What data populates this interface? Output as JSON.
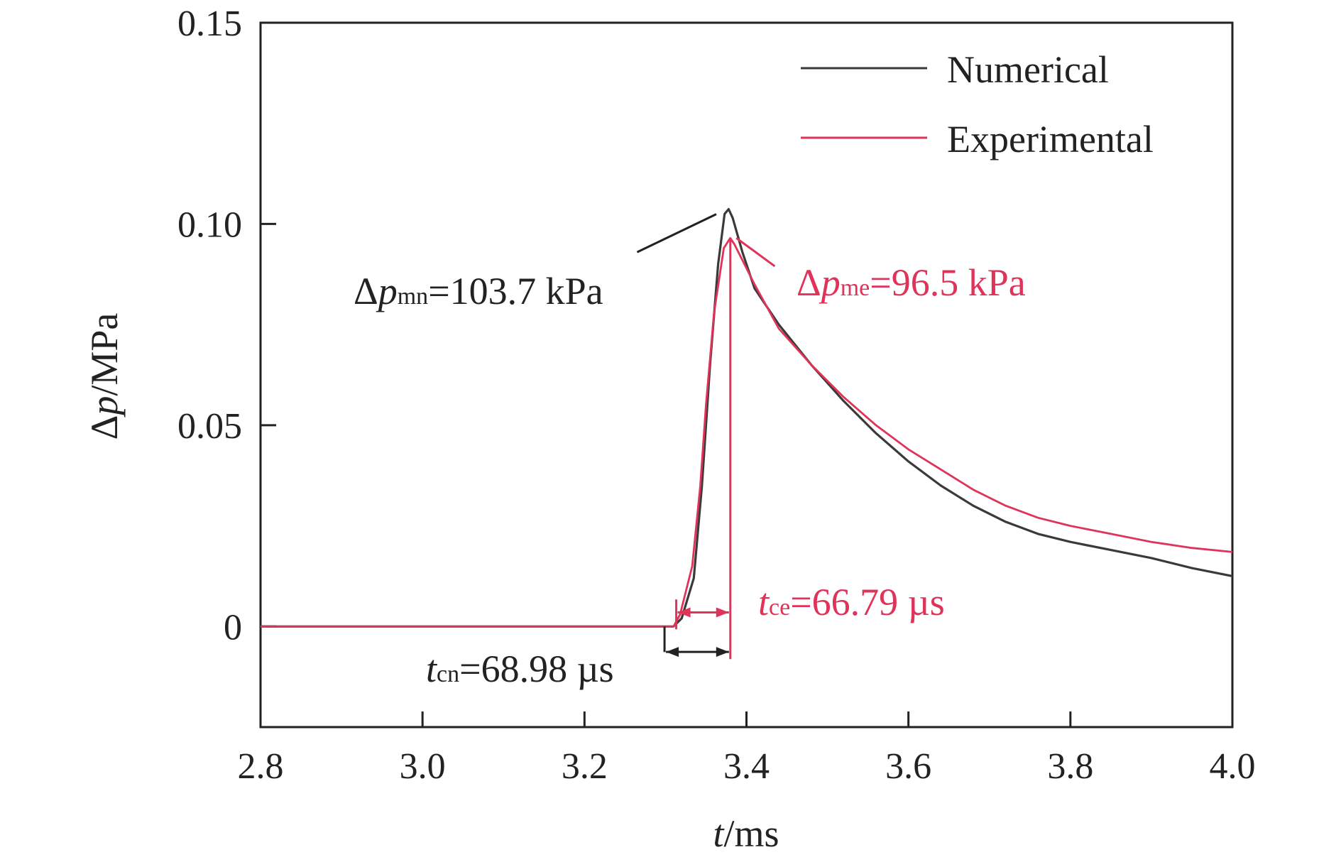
{
  "chart_data": {
    "type": "line",
    "xlabel": {
      "var": "t",
      "unit": "/ms"
    },
    "ylabel": {
      "var": "Δp",
      "varItalic": "p",
      "unit": "/MPa"
    },
    "xlim": [
      2.8,
      4.0
    ],
    "ylim": [
      -0.025,
      0.15
    ],
    "xticks": [
      2.8,
      3.0,
      3.2,
      3.4,
      3.6,
      3.8,
      4.0
    ],
    "xtick_labels": [
      "2.8",
      "3.0",
      "3.2",
      "3.4",
      "3.6",
      "3.8",
      "4.0"
    ],
    "yticks": [
      0,
      0.05,
      0.1,
      0.15
    ],
    "ytick_labels": [
      "0",
      "0.05",
      "0.10",
      "0.15"
    ],
    "legend": {
      "placement": "top-right"
    },
    "series": [
      {
        "name": "Numerical",
        "color": "#3a3a3a",
        "points": [
          [
            2.8,
            0
          ],
          [
            3.31,
            0
          ],
          [
            3.32,
            0.002
          ],
          [
            3.335,
            0.012
          ],
          [
            3.345,
            0.035
          ],
          [
            3.355,
            0.065
          ],
          [
            3.365,
            0.09
          ],
          [
            3.373,
            0.1025
          ],
          [
            3.378,
            0.1037
          ],
          [
            3.383,
            0.1015
          ],
          [
            3.395,
            0.093
          ],
          [
            3.41,
            0.084
          ],
          [
            3.44,
            0.075
          ],
          [
            3.48,
            0.065
          ],
          [
            3.52,
            0.056
          ],
          [
            3.56,
            0.048
          ],
          [
            3.6,
            0.041
          ],
          [
            3.64,
            0.035
          ],
          [
            3.68,
            0.03
          ],
          [
            3.72,
            0.026
          ],
          [
            3.76,
            0.023
          ],
          [
            3.8,
            0.021
          ],
          [
            3.85,
            0.019
          ],
          [
            3.9,
            0.017
          ],
          [
            3.95,
            0.0145
          ],
          [
            4.0,
            0.0125
          ]
        ]
      },
      {
        "name": "Experimental",
        "color": "#e0335a",
        "points": [
          [
            2.8,
            0
          ],
          [
            3.31,
            0
          ],
          [
            3.318,
            0.003
          ],
          [
            3.333,
            0.015
          ],
          [
            3.343,
            0.035
          ],
          [
            3.35,
            0.055
          ],
          [
            3.36,
            0.078
          ],
          [
            3.372,
            0.094
          ],
          [
            3.38,
            0.0965
          ],
          [
            3.385,
            0.095
          ],
          [
            3.41,
            0.085
          ],
          [
            3.44,
            0.074
          ],
          [
            3.48,
            0.065
          ],
          [
            3.52,
            0.057
          ],
          [
            3.56,
            0.05
          ],
          [
            3.6,
            0.044
          ],
          [
            3.64,
            0.039
          ],
          [
            3.68,
            0.034
          ],
          [
            3.72,
            0.03
          ],
          [
            3.76,
            0.027
          ],
          [
            3.8,
            0.025
          ],
          [
            3.85,
            0.023
          ],
          [
            3.9,
            0.021
          ],
          [
            3.95,
            0.0195
          ],
          [
            4.0,
            0.0185
          ]
        ]
      }
    ],
    "annotations": {
      "peak_numerical": {
        "prefix": "Δ",
        "var": "p",
        "sub": "mn",
        "value": "=103.7 kPa",
        "color": "#222222",
        "line_color": "#222222",
        "at": [
          3.375,
          0.1035
        ],
        "line_from": [
          3.265,
          0.093
        ]
      },
      "peak_experimental": {
        "prefix": "Δ",
        "var": "p",
        "sub": "me",
        "value": "=96.5 kPa",
        "color": "#e0335a",
        "line_color": "#e0335a",
        "at": [
          3.384,
          0.0965
        ],
        "line_to": [
          3.435,
          0.0895
        ]
      },
      "rise_experimental": {
        "var": "t",
        "sub": "ce",
        "value": "=66.79 µs",
        "color": "#e0335a",
        "t_start": 3.3133,
        "t_end": 3.3801,
        "y": 0.0035
      },
      "rise_numerical": {
        "var": "t",
        "sub": "cn",
        "value": "=68.98 µs",
        "color": "#222222",
        "t_start": 3.3111,
        "t_end": 3.3801,
        "y": -0.0035
      }
    }
  }
}
